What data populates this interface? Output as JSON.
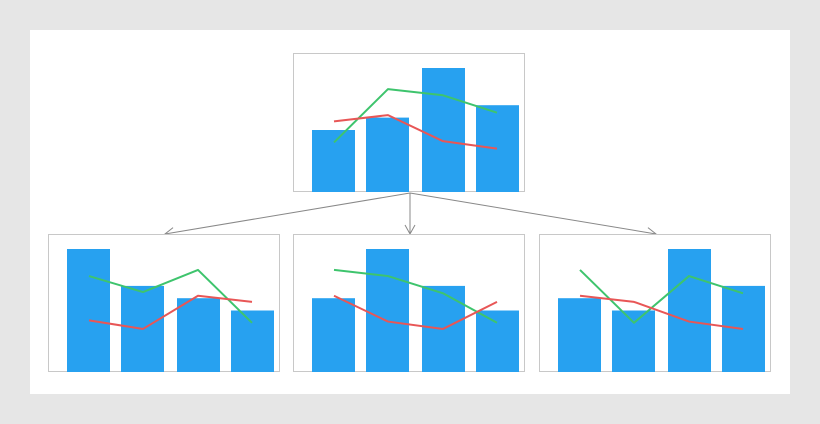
{
  "colors": {
    "background": "#e6e6e6",
    "card": "#ffffff",
    "bar": "#27a1f0",
    "line_green": "#3ec46d",
    "line_red": "#e85656",
    "frame": "#c8c8c8",
    "arrow": "#888888"
  },
  "chart_data": [
    {
      "type": "bar",
      "role": "parent",
      "ylim": [
        0,
        100
      ],
      "values": [
        50,
        60,
        100,
        70
      ],
      "series": [
        {
          "color": "green",
          "values": [
            40,
            83,
            78,
            64
          ]
        },
        {
          "color": "red",
          "values": [
            57,
            62,
            41,
            35
          ]
        }
      ]
    },
    {
      "type": "bar",
      "role": "child",
      "ylim": [
        0,
        100
      ],
      "values": [
        100,
        70,
        60,
        50
      ],
      "series": [
        {
          "color": "green",
          "values": [
            78,
            65,
            83,
            40
          ]
        },
        {
          "color": "red",
          "values": [
            42,
            35,
            62,
            57
          ]
        }
      ]
    },
    {
      "type": "bar",
      "role": "child",
      "ylim": [
        0,
        100
      ],
      "values": [
        60,
        100,
        70,
        50
      ],
      "series": [
        {
          "color": "green",
          "values": [
            83,
            78,
            64,
            40
          ]
        },
        {
          "color": "red",
          "values": [
            62,
            41,
            35,
            57
          ]
        }
      ]
    },
    {
      "type": "bar",
      "role": "child",
      "ylim": [
        0,
        100
      ],
      "values": [
        60,
        50,
        100,
        70
      ],
      "series": [
        {
          "color": "green",
          "values": [
            83,
            40,
            78,
            64
          ]
        },
        {
          "color": "red",
          "values": [
            62,
            57,
            41,
            35
          ]
        }
      ]
    }
  ]
}
